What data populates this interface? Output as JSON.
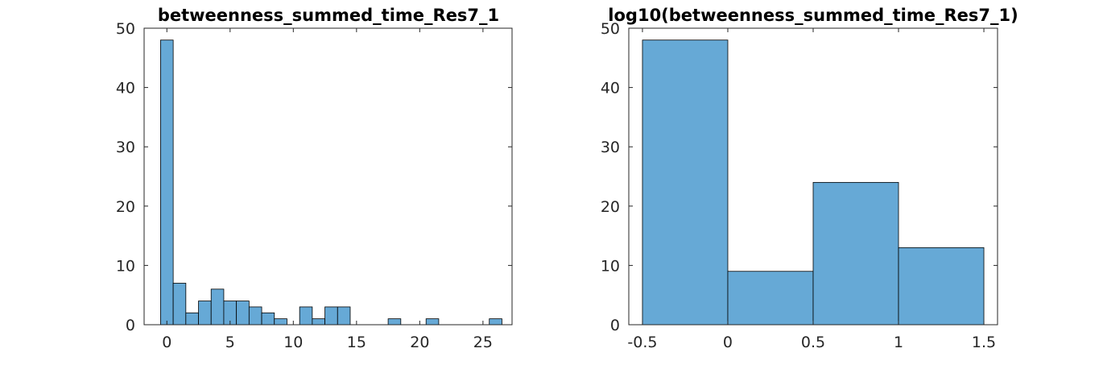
{
  "chart_data": [
    {
      "type": "bar",
      "title": "betweenness_summed_time_Res7_1",
      "xlabel": "",
      "ylabel": "",
      "xlim": [
        -1.8,
        27.3
      ],
      "ylim": [
        0,
        50
      ],
      "xticks": [
        "0",
        "5",
        "10",
        "15",
        "20",
        "25"
      ],
      "yticks": [
        "0",
        "10",
        "20",
        "30",
        "40",
        "50"
      ],
      "bar_color": "#66a9d6",
      "bins": [
        {
          "x0": -0.5,
          "x1": 0.5,
          "value": 48
        },
        {
          "x0": 0.5,
          "x1": 1.5,
          "value": 7
        },
        {
          "x0": 1.5,
          "x1": 2.5,
          "value": 2
        },
        {
          "x0": 2.5,
          "x1": 3.5,
          "value": 4
        },
        {
          "x0": 3.5,
          "x1": 4.5,
          "value": 6
        },
        {
          "x0": 4.5,
          "x1": 5.5,
          "value": 4
        },
        {
          "x0": 5.5,
          "x1": 6.5,
          "value": 4
        },
        {
          "x0": 6.5,
          "x1": 7.5,
          "value": 3
        },
        {
          "x0": 7.5,
          "x1": 8.5,
          "value": 2
        },
        {
          "x0": 8.5,
          "x1": 9.5,
          "value": 1
        },
        {
          "x0": 9.5,
          "x1": 10.5,
          "value": 0
        },
        {
          "x0": 10.5,
          "x1": 11.5,
          "value": 3
        },
        {
          "x0": 11.5,
          "x1": 12.5,
          "value": 1
        },
        {
          "x0": 12.5,
          "x1": 13.5,
          "value": 3
        },
        {
          "x0": 13.5,
          "x1": 14.5,
          "value": 3
        },
        {
          "x0": 14.5,
          "x1": 15.5,
          "value": 0
        },
        {
          "x0": 15.5,
          "x1": 16.5,
          "value": 0
        },
        {
          "x0": 16.5,
          "x1": 17.5,
          "value": 0
        },
        {
          "x0": 17.5,
          "x1": 18.5,
          "value": 1
        },
        {
          "x0": 18.5,
          "x1": 19.5,
          "value": 0
        },
        {
          "x0": 19.5,
          "x1": 20.5,
          "value": 0
        },
        {
          "x0": 20.5,
          "x1": 21.5,
          "value": 1
        },
        {
          "x0": 21.5,
          "x1": 22.5,
          "value": 0
        },
        {
          "x0": 22.5,
          "x1": 23.5,
          "value": 0
        },
        {
          "x0": 23.5,
          "x1": 24.5,
          "value": 0
        },
        {
          "x0": 24.5,
          "x1": 25.5,
          "value": 0
        },
        {
          "x0": 25.5,
          "x1": 26.5,
          "value": 1
        }
      ],
      "grid": false,
      "legend": "none"
    },
    {
      "type": "bar",
      "title": "log10(betweenness_summed_time_Res7_1)",
      "xlabel": "",
      "ylabel": "",
      "xlim": [
        -0.58,
        1.58
      ],
      "ylim": [
        0,
        50
      ],
      "xticks": [
        "-0.5",
        "0",
        "0.5",
        "1",
        "1.5"
      ],
      "yticks": [
        "0",
        "10",
        "20",
        "30",
        "40",
        "50"
      ],
      "bar_color": "#66a9d6",
      "bins": [
        {
          "x0": -0.5,
          "x1": 0.0,
          "value": 48
        },
        {
          "x0": 0.0,
          "x1": 0.5,
          "value": 9
        },
        {
          "x0": 0.5,
          "x1": 1.0,
          "value": 24
        },
        {
          "x0": 1.0,
          "x1": 1.5,
          "value": 13
        }
      ],
      "grid": false,
      "legend": "none"
    }
  ]
}
